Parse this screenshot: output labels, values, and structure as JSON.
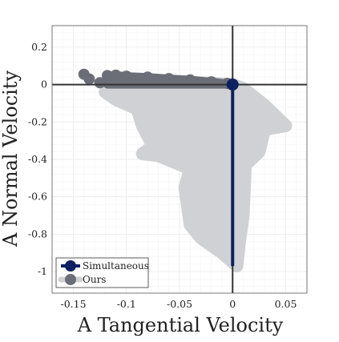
{
  "chart_data": {
    "type": "scatter",
    "xlabel": "A Tangential Velocity",
    "ylabel": "A Normal Velocity",
    "xlim": [
      -0.17,
      0.07
    ],
    "ylim": [
      -1.115,
      0.315
    ],
    "xticks": [
      -0.15,
      -0.1,
      -0.05,
      0,
      0.05
    ],
    "xtick_labels": [
      "-0.15",
      "-0.1",
      "-0.05",
      "0",
      "0.05"
    ],
    "yticks": [
      0.2,
      0,
      -0.2,
      -0.4,
      -0.6,
      -0.8,
      -1
    ],
    "ytick_labels": [
      "0.2",
      "0",
      "-0.2",
      "-0.4",
      "-0.6",
      "-0.8",
      "-1"
    ],
    "grid": true,
    "minor_grid": true,
    "zero_lines": true,
    "legend_position": "bottom-left",
    "colors": {
      "simultaneous": "#0d2160",
      "ours": "#6b6e76",
      "cloud": "#d0d1d4",
      "grid": "#ececec",
      "zero_line": "#333333"
    },
    "cloud_outline": [
      [
        -0.105,
        0.02
      ],
      [
        -0.06,
        0.02
      ],
      [
        0.0,
        0.0
      ],
      [
        0.01,
        -0.02
      ],
      [
        0.03,
        -0.11
      ],
      [
        0.05,
        -0.22
      ],
      [
        0.03,
        -0.24
      ],
      [
        0.025,
        -0.36
      ],
      [
        0.012,
        -0.43
      ],
      [
        0.01,
        -0.7
      ],
      [
        0.007,
        -0.82
      ],
      [
        0.004,
        -0.97
      ],
      [
        -0.01,
        -0.9
      ],
      [
        -0.03,
        -0.82
      ],
      [
        -0.04,
        -0.75
      ],
      [
        -0.045,
        -0.55
      ],
      [
        -0.04,
        -0.45
      ],
      [
        -0.07,
        -0.38
      ],
      [
        -0.085,
        -0.37
      ],
      [
        -0.075,
        -0.33
      ],
      [
        -0.085,
        -0.22
      ],
      [
        -0.09,
        -0.13
      ],
      [
        -0.11,
        -0.08
      ],
      [
        -0.12,
        -0.04
      ],
      [
        -0.105,
        0.02
      ]
    ],
    "series": [
      {
        "name": "Simultaneous",
        "color": "#0d2160",
        "points": [
          [
            0,
            0
          ],
          [
            0,
            -0.97
          ]
        ]
      },
      {
        "name": "Ours",
        "color": "#6b6e76",
        "points": [
          [
            -0.14,
            0.055
          ],
          [
            -0.135,
            0.03
          ],
          [
            -0.125,
            0.01
          ],
          [
            -0.118,
            0.048
          ],
          [
            -0.11,
            0.05
          ],
          [
            -0.1,
            0.045
          ],
          [
            -0.08,
            0.04
          ],
          [
            -0.06,
            0.032
          ],
          [
            -0.04,
            0.025
          ],
          [
            -0.02,
            0.015
          ],
          [
            -0.005,
            0.006
          ],
          [
            0,
            0
          ]
        ],
        "band_bottom": [
          [
            -0.118,
            0.0
          ],
          [
            -0.1,
            0.0
          ],
          [
            -0.08,
            0.0
          ],
          [
            -0.05,
            0.0
          ],
          [
            -0.02,
            0.0
          ],
          [
            0,
            0
          ]
        ]
      }
    ]
  }
}
